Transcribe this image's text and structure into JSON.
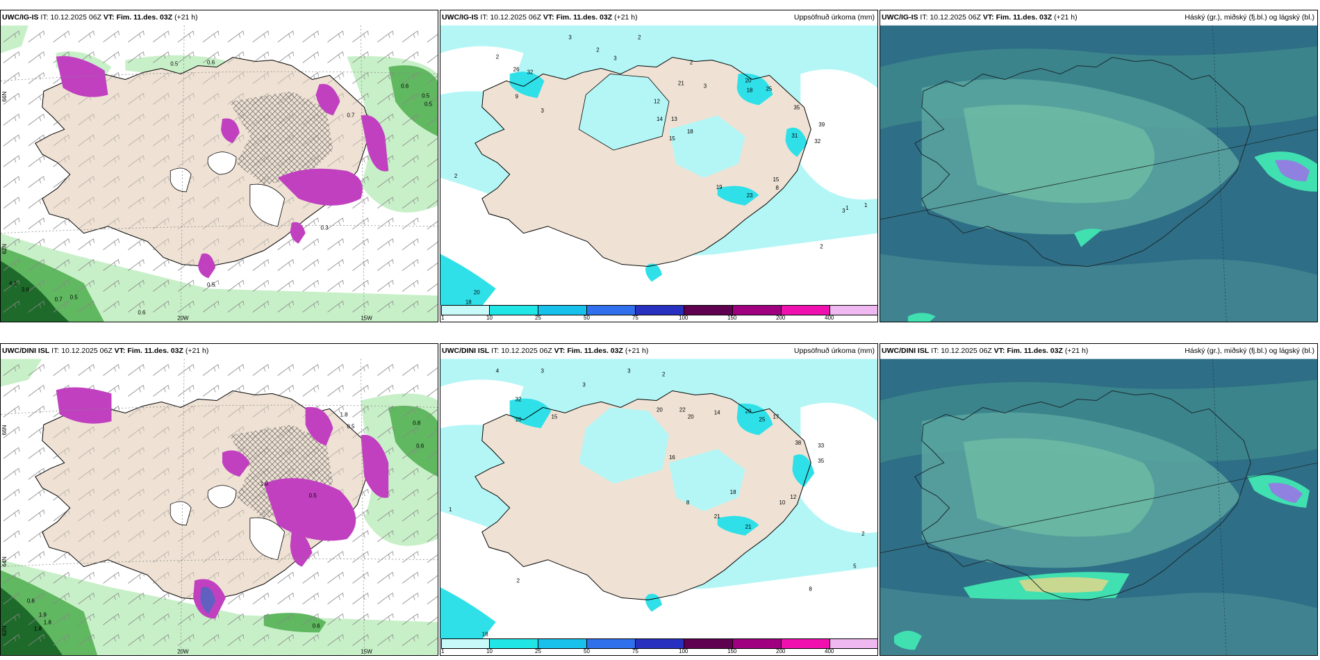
{
  "rows": [
    {
      "model": "UWC/IG-IS",
      "it_label": "IT:",
      "it": "10.12.2025 06Z",
      "vt_label": "VT:",
      "vt": "Fim. 11.des. 03Z",
      "lead": "(+21 h)",
      "precip_title": "Uppsöfnuð úrkoma (mm)",
      "cloud_title": "Háský (gr.), miðský (fj.bl.) og lágský (bl.)",
      "wind_values": [
        "0.5",
        "0.6",
        "0.6",
        "0.5",
        "0.5",
        "4.1",
        "3.6",
        "0.7",
        "0.5",
        "0.6",
        "0.3",
        "0.7",
        "0.5"
      ],
      "precip_values": [
        "3",
        "2",
        "2",
        "3",
        "2",
        "2",
        "3",
        "26",
        "32",
        "9",
        "3",
        "20",
        "18",
        "25",
        "21",
        "12",
        "14",
        "13",
        "15",
        "18",
        "35",
        "39",
        "32",
        "31",
        "15",
        "8",
        "19",
        "23",
        "2",
        "20",
        "18",
        "1",
        "1",
        "2",
        "3"
      ]
    },
    {
      "model": "UWC/DINI ISL",
      "it_label": "IT:",
      "it": "10.12.2025 06Z",
      "vt_label": "VT:",
      "vt": "Fim. 11.des. 03Z",
      "lead": "(+21 h)",
      "precip_title": "Uppsöfnuð úrkoma (mm)",
      "cloud_title": "Háský (gr.), miðský (fj.bl.) og lágský (bl.)",
      "wind_values": [
        "0.8",
        "0.6",
        "1.8",
        "1.0",
        "0.5",
        "0.6",
        "1.9",
        "1.8",
        "0.6",
        "1.8",
        "0.5"
      ],
      "precip_values": [
        "4",
        "3",
        "3",
        "3",
        "2",
        "32",
        "10",
        "15",
        "20",
        "22",
        "20",
        "14",
        "20",
        "25",
        "17",
        "33",
        "35",
        "38",
        "21",
        "18",
        "16",
        "8",
        "12",
        "10",
        "21",
        "2",
        "5",
        "8",
        "1",
        "18",
        "2"
      ]
    }
  ],
  "axis": {
    "lat_66": "66N",
    "lat_64": "64N",
    "lat_62": "62N",
    "lon_20": "20W",
    "lon_15": "15W"
  },
  "colorbar": {
    "labels": [
      "1",
      "10",
      "25",
      "50",
      "75",
      "100",
      "150",
      "200",
      "400"
    ],
    "colors": [
      "#c8fafa",
      "#20e6e6",
      "#18c0ec",
      "#3070ec",
      "#2830c0",
      "#600050",
      "#a00080",
      "#f010b0",
      "#f0b8f0"
    ]
  },
  "colors": {
    "land": "#efe2d4",
    "green_light": "#c8f0c8",
    "green_mid": "#60b860",
    "green_dark": "#1e6a2a",
    "precip_purple": "#c040c0",
    "precip_light": "#b4f6f6",
    "precip_cyan": "#30e0e8",
    "cloud_high": "#2e6e86",
    "cloud_mid": "#5aa6a0",
    "cloud_low": "#78c6a6"
  }
}
